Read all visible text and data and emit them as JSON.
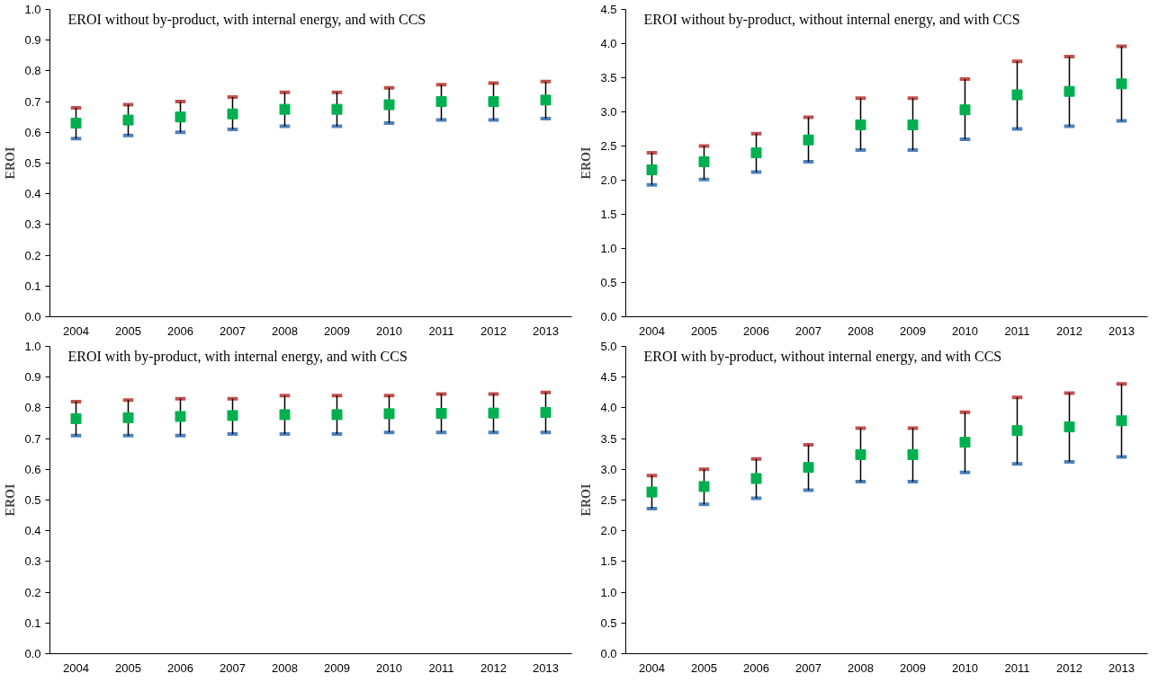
{
  "chart_data": [
    {
      "type": "scatter",
      "title": "EROI without by-product, with internal  energy, and with CCS",
      "ylabel": "EROI",
      "categories": [
        "2004",
        "2005",
        "2006",
        "2007",
        "2008",
        "2009",
        "2010",
        "2011",
        "2012",
        "2013"
      ],
      "series": [
        {
          "color": "#00b050",
          "values": [
            0.63,
            0.64,
            0.65,
            0.66,
            0.675,
            0.675,
            0.69,
            0.7,
            0.7,
            0.705
          ],
          "errors": [
            [
              0.58,
              0.68
            ],
            [
              0.59,
              0.69
            ],
            [
              0.6,
              0.7
            ],
            [
              0.61,
              0.715
            ],
            [
              0.62,
              0.73
            ],
            [
              0.62,
              0.73
            ],
            [
              0.63,
              0.745
            ],
            [
              0.64,
              0.755
            ],
            [
              0.64,
              0.76
            ],
            [
              0.645,
              0.765
            ]
          ]
        }
      ],
      "ylim": [
        0,
        1
      ],
      "yticks": [
        {
          "value": 0,
          "label": "0.0"
        },
        {
          "value": 0.1,
          "label": "0.1"
        },
        {
          "value": 0.2,
          "label": "0.2"
        },
        {
          "value": 0.3,
          "label": "0.3"
        },
        {
          "value": 0.4,
          "label": "0.4"
        },
        {
          "value": 0.5,
          "label": "0.5"
        },
        {
          "value": 0.6,
          "label": "0.6"
        },
        {
          "value": 0.7,
          "label": "0.7"
        },
        {
          "value": 0.8,
          "label": "0.8"
        },
        {
          "value": 0.9,
          "label": "0.9"
        },
        {
          "value": 1,
          "label": "1.0"
        }
      ],
      "marker": "square",
      "grid": false
    },
    {
      "type": "scatter",
      "title": "EROI without by-product, without internal  energy, and with CCS",
      "ylabel": "EROI",
      "categories": [
        "2004",
        "2005",
        "2006",
        "2007",
        "2008",
        "2009",
        "2010",
        "2011",
        "2012",
        "2013"
      ],
      "series": [
        {
          "color": "#00b050",
          "values": [
            2.15,
            2.27,
            2.4,
            2.59,
            2.81,
            2.81,
            3.03,
            3.25,
            3.3,
            3.41
          ],
          "errors": [
            [
              1.93,
              2.4
            ],
            [
              2.01,
              2.5
            ],
            [
              2.12,
              2.68
            ],
            [
              2.27,
              2.92
            ],
            [
              2.44,
              3.2
            ],
            [
              2.44,
              3.2
            ],
            [
              2.6,
              3.48
            ],
            [
              2.75,
              3.74
            ],
            [
              2.79,
              3.81
            ],
            [
              2.87,
              3.96
            ]
          ]
        }
      ],
      "ylim": [
        0,
        4.5
      ],
      "yticks": [
        {
          "value": 0,
          "label": "0.0"
        },
        {
          "value": 0.5,
          "label": "0.5"
        },
        {
          "value": 1,
          "label": "1.0"
        },
        {
          "value": 1.5,
          "label": "1.5"
        },
        {
          "value": 2,
          "label": "2.0"
        },
        {
          "value": 2.5,
          "label": "2.5"
        },
        {
          "value": 3,
          "label": "3.0"
        },
        {
          "value": 3.5,
          "label": "3.5"
        },
        {
          "value": 4,
          "label": "4.0"
        },
        {
          "value": 4.5,
          "label": "4.5"
        }
      ],
      "marker": "square",
      "grid": false
    },
    {
      "type": "scatter",
      "title": "EROI with by-product, with  internal  energy, and with CCS",
      "ylabel": "EROI",
      "categories": [
        "2004",
        "2005",
        "2006",
        "2007",
        "2008",
        "2009",
        "2010",
        "2011",
        "2012",
        "2013"
      ],
      "series": [
        {
          "color": "#00b050",
          "values": [
            0.765,
            0.768,
            0.772,
            0.775,
            0.778,
            0.778,
            0.781,
            0.782,
            0.783,
            0.785
          ],
          "errors": [
            [
              0.71,
              0.82
            ],
            [
              0.71,
              0.825
            ],
            [
              0.71,
              0.83
            ],
            [
              0.715,
              0.83
            ],
            [
              0.715,
              0.84
            ],
            [
              0.715,
              0.84
            ],
            [
              0.72,
              0.84
            ],
            [
              0.72,
              0.845
            ],
            [
              0.72,
              0.845
            ],
            [
              0.72,
              0.85
            ]
          ]
        }
      ],
      "ylim": [
        0,
        1
      ],
      "yticks": [
        {
          "value": 0,
          "label": "0.0"
        },
        {
          "value": 0.1,
          "label": "0.1"
        },
        {
          "value": 0.2,
          "label": "0.2"
        },
        {
          "value": 0.3,
          "label": "0.3"
        },
        {
          "value": 0.4,
          "label": "0.4"
        },
        {
          "value": 0.5,
          "label": "0.5"
        },
        {
          "value": 0.6,
          "label": "0.6"
        },
        {
          "value": 0.7,
          "label": "0.7"
        },
        {
          "value": 0.8,
          "label": "0.8"
        },
        {
          "value": 0.9,
          "label": "0.9"
        },
        {
          "value": 1,
          "label": "1.0"
        }
      ],
      "marker": "square",
      "grid": false
    },
    {
      "type": "scatter",
      "title": "EROI with by-product, without internal  energy, and with CCS",
      "ylabel": "EROI",
      "categories": [
        "2004",
        "2005",
        "2006",
        "2007",
        "2008",
        "2009",
        "2010",
        "2011",
        "2012",
        "2013"
      ],
      "series": [
        {
          "color": "#00b050",
          "values": [
            2.63,
            2.72,
            2.85,
            3.03,
            3.24,
            3.24,
            3.44,
            3.63,
            3.69,
            3.79
          ],
          "errors": [
            [
              2.36,
              2.9
            ],
            [
              2.43,
              3.0
            ],
            [
              2.53,
              3.17
            ],
            [
              2.66,
              3.4
            ],
            [
              2.8,
              3.67
            ],
            [
              2.8,
              3.67
            ],
            [
              2.95,
              3.93
            ],
            [
              3.09,
              4.17
            ],
            [
              3.12,
              4.24
            ],
            [
              3.2,
              4.39
            ]
          ]
        }
      ],
      "ylim": [
        0,
        5
      ],
      "yticks": [
        {
          "value": 0,
          "label": "0.0"
        },
        {
          "value": 0.5,
          "label": "0.5"
        },
        {
          "value": 1,
          "label": "1.0"
        },
        {
          "value": 1.5,
          "label": "1.5"
        },
        {
          "value": 2,
          "label": "2.0"
        },
        {
          "value": 2.5,
          "label": "2.5"
        },
        {
          "value": 3,
          "label": "3.0"
        },
        {
          "value": 3.5,
          "label": "3.5"
        },
        {
          "value": 4,
          "label": "4.0"
        },
        {
          "value": 4.5,
          "label": "4.5"
        },
        {
          "value": 5,
          "label": "5.0"
        }
      ],
      "marker": "square",
      "grid": false
    }
  ]
}
